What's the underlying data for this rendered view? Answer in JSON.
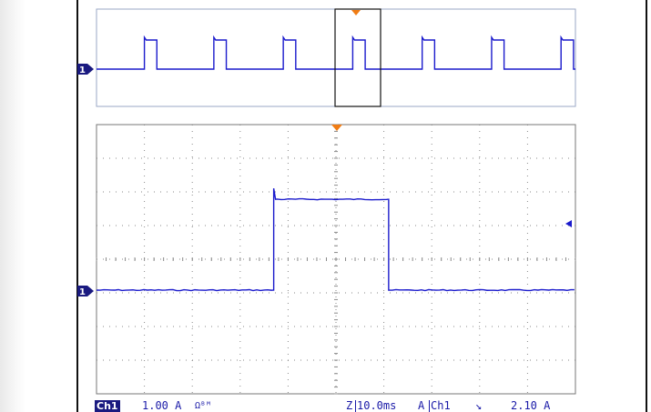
{
  "scope": {
    "trace_color": "#1a1acc",
    "marker_color": "#1a1a80",
    "trigger_color": "#f07c14",
    "grid_color": "#8a8a8a",
    "overview_panel": {
      "ground_marker_label": "1",
      "trigger_marker": "orange-triangle"
    },
    "main_panel": {
      "ground_marker_label": "1",
      "trigger_marker": "orange-triangle",
      "trigger_level_marker": "blue-left-arrow",
      "grid_divisions": {
        "x": 10,
        "y": 8
      }
    },
    "main_waveform": {
      "baseline_div": 0.0,
      "pulse_high_div": 2.7,
      "pulse_start_div": 3.7,
      "pulse_end_div": 6.1
    },
    "overview_waveform": {
      "pulse_starts_fraction": [
        0.1,
        0.245,
        0.39,
        0.535,
        0.68,
        0.825,
        0.97
      ],
      "pulse_width_fraction": 0.026
    },
    "status": {
      "channel_label": "Ch1",
      "scale": "1.00 A",
      "scale_units": "Ωᴮᴹ",
      "zoom_prefix": "Z",
      "timebase": "10.0ms",
      "trigger_mode": "A",
      "trigger_channel": "Ch1",
      "trigger_slope_icon": "falling-edge-icon",
      "trigger_slope_glyph": "↘",
      "trigger_level": "2.10 A"
    }
  }
}
